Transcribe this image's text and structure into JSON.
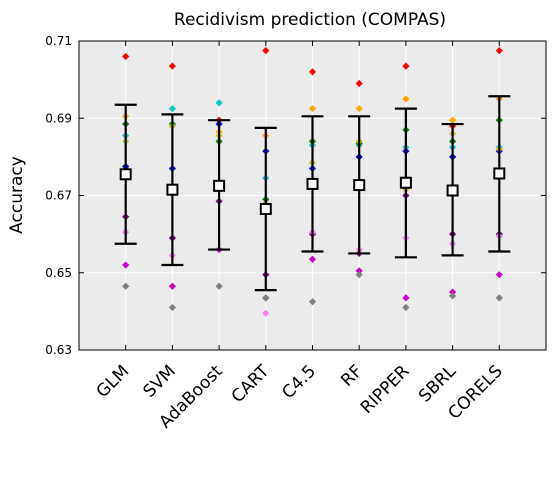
{
  "chart_data": {
    "type": "scatter",
    "title": "Recidivism prediction (COMPAS)",
    "xlabel": "",
    "ylabel": "Accuracy",
    "ylim": [
      0.63,
      0.71
    ],
    "yticks": [
      "0.63",
      "0.65",
      "0.67",
      "0.69",
      "0.71"
    ],
    "grid": true,
    "categories": [
      "GLM",
      "SVM",
      "AdaBoost",
      "CART",
      "C4.5",
      "RF",
      "RIPPER",
      "SBRL",
      "CORELS"
    ],
    "fold_colors": [
      "#ff0000",
      "#ffa500",
      "#00cccc",
      "#008000",
      "#0000ff",
      "#c8c800",
      "#800080",
      "#ee82ee",
      "#cc00cc",
      "#808080"
    ],
    "folds": [
      [
        0.706,
        0.6905,
        0.6855,
        0.6885,
        0.6775,
        0.684,
        0.6645,
        0.6605,
        0.652,
        0.6465
      ],
      [
        0.7035,
        0.688,
        0.6925,
        0.6885,
        0.677,
        0.688,
        0.659,
        0.6545,
        0.6465,
        0.641
      ],
      [
        0.6895,
        0.6865,
        0.694,
        0.684,
        0.6885,
        0.6855,
        0.6685,
        0.656,
        0.656,
        0.6465
      ],
      [
        0.7075,
        0.6855,
        0.6745,
        0.669,
        0.6815,
        0.668,
        0.6495,
        0.6395,
        0.6435,
        0.6435
      ],
      [
        0.702,
        0.6925,
        0.683,
        0.684,
        0.677,
        0.6785,
        0.66,
        0.6605,
        0.6535,
        0.6425
      ],
      [
        0.699,
        0.6925,
        0.683,
        0.6835,
        0.68,
        0.684,
        0.655,
        0.656,
        0.6505,
        0.6495
      ],
      [
        0.7035,
        0.695,
        0.6825,
        0.687,
        0.6815,
        0.6715,
        0.67,
        0.659,
        0.6435,
        0.641
      ],
      [
        0.688,
        0.6895,
        0.6825,
        0.684,
        0.68,
        0.686,
        0.66,
        0.6575,
        0.645,
        0.644
      ],
      [
        0.7075,
        0.695,
        0.6825,
        0.6895,
        0.6815,
        0.682,
        0.66,
        0.6595,
        0.6495,
        0.6435
      ]
    ],
    "mean": [
      0.6755,
      0.6715,
      0.6725,
      0.6665,
      0.673,
      0.6727,
      0.6733,
      0.6713,
      0.6757
    ],
    "err_low": [
      0.6575,
      0.652,
      0.656,
      0.6455,
      0.6555,
      0.655,
      0.654,
      0.6545,
      0.6555
    ],
    "err_high": [
      0.6935,
      0.691,
      0.6895,
      0.6875,
      0.6905,
      0.6905,
      0.6925,
      0.6885,
      0.6957
    ]
  }
}
